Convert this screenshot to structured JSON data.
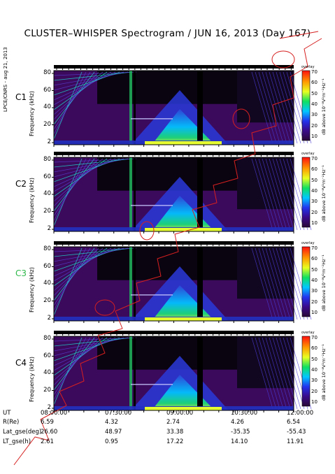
{
  "title": "CLUSTER–WHISPER Spectrogram / JUN 16, 2013 (Day 167)",
  "side_note": "LPCE/CNRS - aug 21, 2013",
  "colorbar_label": "dB above 10⁻⁸V²m⁻²Hz⁻¹",
  "colorbar_top_word": "overlay",
  "colorbar_ticks": [
    "70",
    "60",
    "50",
    "40",
    "30",
    "20",
    "10"
  ],
  "y_axis_label": "Frequency (kHz)",
  "y_ticks": [
    "80",
    "60",
    "40",
    "20",
    "2"
  ],
  "panels": [
    {
      "name": "C1",
      "color": "#000000"
    },
    {
      "name": "C2",
      "color": "#000000"
    },
    {
      "name": "C3",
      "color": "#2fb84a"
    },
    {
      "name": "C4",
      "color": "#000000"
    }
  ],
  "bottom_axis": {
    "row_labels": [
      "UT",
      "R(Re)",
      "Lat_gse(deg)",
      "LT_gse(h)"
    ],
    "ut": [
      "08:00:00",
      "07:30:00",
      "09:00:00",
      "10:30:00",
      "12:00:00"
    ],
    "r_re": [
      "6.59",
      "4.32",
      "2.74",
      "4.26",
      "6.54"
    ],
    "lat_gse": [
      "26.60",
      "48.97",
      "33.38",
      "-35.35",
      "-55.43"
    ],
    "lt_gse": [
      "2.61",
      "0.95",
      "17.22",
      "14.10",
      "11.91"
    ]
  },
  "watermark_color": "#d62020",
  "chart_data": {
    "type": "heatmap",
    "title": "CLUSTER–WHISPER Spectrogram / JUN 16, 2013 (Day 167)",
    "xlabel": "UT",
    "ylabel": "Frequency (kHz)",
    "x_ticks": [
      "08:00:00",
      "07:30:00",
      "09:00:00",
      "10:30:00",
      "12:00:00"
    ],
    "y_ticks": [
      80,
      60,
      40,
      20,
      2
    ],
    "ylim": [
      2,
      80
    ],
    "colorbar_range": [
      10,
      70
    ],
    "colorbar_unit": "dB above 10⁻⁸V²m⁻²Hz⁻¹",
    "series": [
      {
        "name": "C1"
      },
      {
        "name": "C2"
      },
      {
        "name": "C3"
      },
      {
        "name": "C4"
      }
    ]
  }
}
